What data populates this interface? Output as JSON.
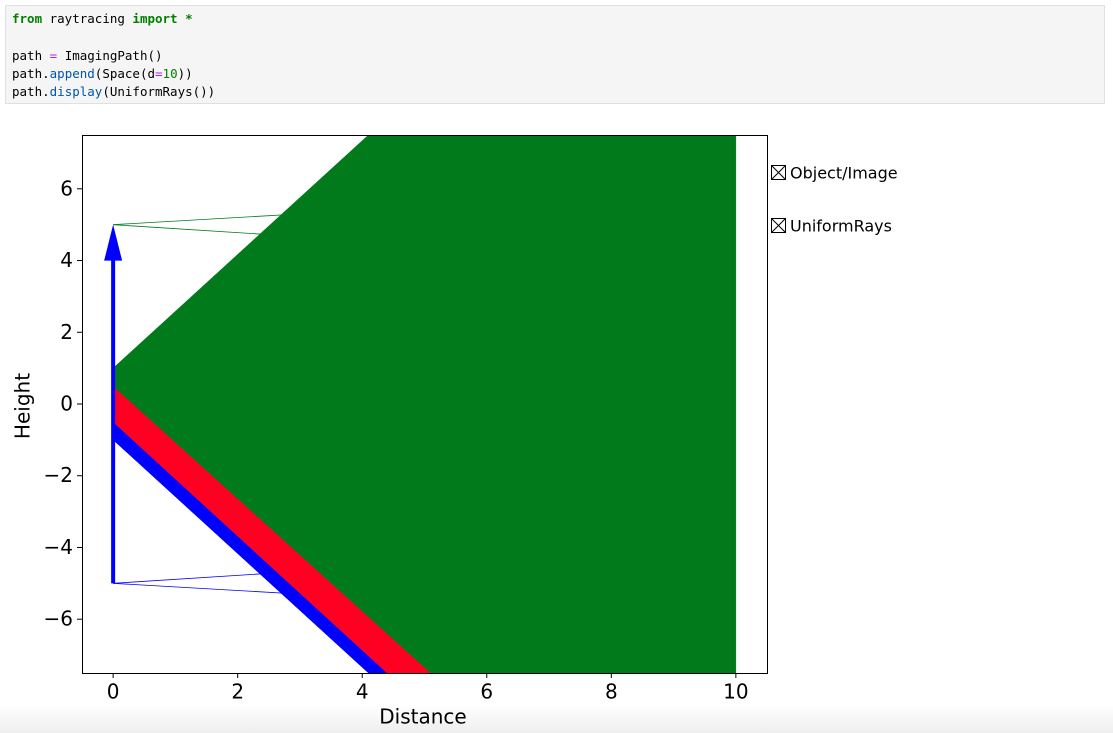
{
  "code": {
    "lines": [
      [
        {
          "text": "from",
          "color": "#008000",
          "weight": "bold"
        },
        {
          "text": " raytracing ",
          "color": "#000000"
        },
        {
          "text": "import",
          "color": "#008000",
          "weight": "bold"
        },
        {
          "text": " ",
          "color": "#000000"
        },
        {
          "text": "*",
          "color": "#008000",
          "weight": "bold"
        }
      ],
      [],
      [
        {
          "text": "path ",
          "color": "#000000"
        },
        {
          "text": "=",
          "color": "#aa22ff"
        },
        {
          "text": " ImagingPath()",
          "color": "#000000"
        }
      ],
      [
        {
          "text": "path.",
          "color": "#000000"
        },
        {
          "text": "append",
          "color": "#0055aa"
        },
        {
          "text": "(Space(d",
          "color": "#000000"
        },
        {
          "text": "=",
          "color": "#aa22ff"
        },
        {
          "text": "10",
          "color": "#008000"
        },
        {
          "text": "))",
          "color": "#000000"
        }
      ],
      [
        {
          "text": "path.",
          "color": "#000000"
        },
        {
          "text": "display",
          "color": "#0055aa"
        },
        {
          "text": "(UniformRays())",
          "color": "#000000"
        }
      ]
    ]
  },
  "chart_data": {
    "type": "ray",
    "xlabel": "Distance",
    "ylabel": "Height",
    "xlim": [
      -0.5,
      10.5
    ],
    "ylim": [
      -7.5,
      7.5
    ],
    "xticks": [
      0,
      2,
      4,
      6,
      8,
      10
    ],
    "yticks": [
      {
        "value": -6,
        "label": "−6"
      },
      {
        "value": -4,
        "label": "−4"
      },
      {
        "value": -2,
        "label": "−2"
      },
      0,
      2,
      4,
      6
    ],
    "legend": [
      "Object/Image",
      "UniformRays"
    ],
    "rays": [
      {
        "color": "#007a1a",
        "x": [
          0,
          3
        ],
        "y": [
          5,
          5.3
        ]
      },
      {
        "color": "#007a1a",
        "x": [
          0,
          2.7
        ],
        "y": [
          5,
          4.7
        ]
      },
      {
        "color": "#0000ff",
        "x": [
          0,
          2.7
        ],
        "y": [
          -5,
          -4.7
        ]
      },
      {
        "color": "#0000ff",
        "x": [
          0,
          3
        ],
        "y": [
          -5,
          -5.3
        ]
      }
    ],
    "shapes": [
      {
        "color": "#0000ff",
        "x": [
          0,
          4.4,
          4.1,
          0
        ],
        "y": [
          -0.5,
          -7.5,
          -7.5,
          -1
        ]
      },
      {
        "color": "#ff0022",
        "x": [
          0,
          5.1,
          4.4,
          0
        ],
        "y": [
          0.5,
          -7.5,
          -7.5,
          -0.5
        ]
      },
      {
        "color": "#007a1a",
        "x": [
          0,
          4.1,
          10,
          10,
          5.1,
          0
        ],
        "y": [
          1,
          7.5,
          7.5,
          -7.5,
          -7.5,
          0.5
        ]
      }
    ],
    "object": {
      "color": "#0000ff",
      "x": 0,
      "y": [
        -5,
        5
      ]
    }
  }
}
